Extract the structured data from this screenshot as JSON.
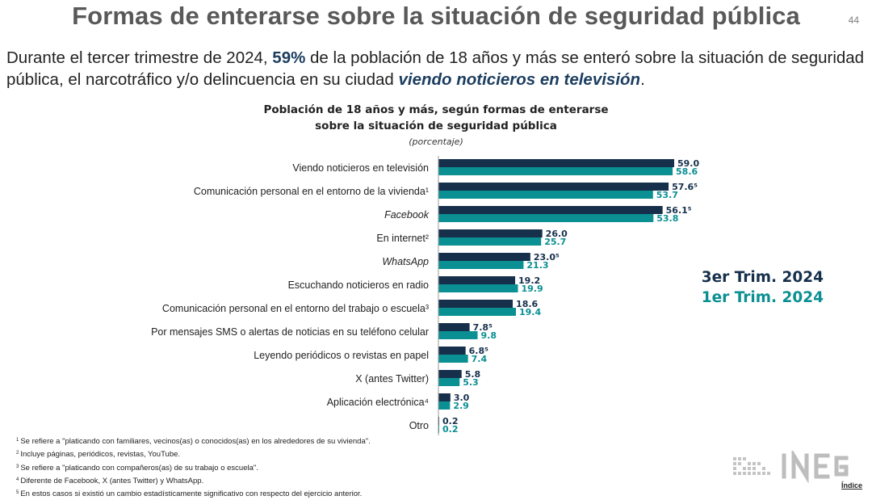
{
  "slide": {
    "title": "Formas de enterarse sobre la situación de seguridad pública",
    "page_number": "44",
    "headline_pre": "Durante el tercer trimestre de 2024, ",
    "headline_pct": "59%",
    "headline_mid": " de la población de 18 años y más se enteró sobre la situación de seguridad pública, el narcotráfico y/o delincuencia en su ciudad ",
    "headline_em": "viendo noticieros en televisión",
    "headline_end": "."
  },
  "chart_data": {
    "type": "bar",
    "orientation": "horizontal",
    "title_line1": "Población de 18 años y más, según formas de enterarse",
    "title_line2": "sobre la situación de seguridad pública",
    "subtitle": "(porcentaje)",
    "categories": [
      "Viendo noticieros en televisión",
      "Comunicación personal en el entorno de la vivienda¹",
      "Facebook",
      "En internet²",
      "WhatsApp",
      "Escuchando noticieros en radio",
      "Comunicación personal en el entorno del trabajo o escuela³",
      "Por mensajes SMS o alertas de noticias en su teléfono celular",
      "Leyendo periódicos o revistas en papel",
      "X (antes Twitter)",
      "Aplicación electrónica⁴",
      "Otro"
    ],
    "italic_categories": [
      2,
      4
    ],
    "series": [
      {
        "name": "3er Trim. 2024",
        "color": "#16304c",
        "values": [
          59.0,
          57.6,
          56.1,
          26.0,
          23.0,
          19.2,
          18.6,
          7.8,
          6.8,
          5.8,
          3.0,
          0.2
        ],
        "labels": [
          "59.0",
          "57.6⁵",
          "56.1⁵",
          "26.0",
          "23.0⁵",
          "19.2",
          "18.6",
          "7.8⁵",
          "6.8⁵",
          "5.8",
          "3.0",
          "0.2"
        ]
      },
      {
        "name": "1er Trim. 2024",
        "color": "#0a8f92",
        "values": [
          58.6,
          53.7,
          53.8,
          25.7,
          21.3,
          19.9,
          19.4,
          9.8,
          7.4,
          5.3,
          2.9,
          0.2
        ],
        "labels": [
          "58.6",
          "53.7",
          "53.8",
          "25.7",
          "21.3",
          "19.9",
          "19.4",
          "9.8",
          "7.4",
          "5.3",
          "2.9",
          "0.2"
        ]
      }
    ],
    "legend_position": "right",
    "grid": false
  },
  "footnotes": [
    {
      "num": "1",
      "text": "Se refiere a \"platicando con familiares, vecinos(as) o conocidos(as) en los alrededores de su vivienda\"."
    },
    {
      "num": "2",
      "text": "Incluye páginas, periódicos, revistas, YouTube."
    },
    {
      "num": "3",
      "text": "Se refiere a \"platicando con compañeros(as) de su trabajo o escuela\"."
    },
    {
      "num": "4",
      "text": "Diferente de Facebook, X (antes Twitter) y WhatsApp."
    },
    {
      "num": "5",
      "text": "En estos casos si existió un cambio estadísticamente significativo con respecto del ejercicio anterior."
    }
  ],
  "logo": {
    "text": "INEGI"
  },
  "nav": {
    "index_label": "Índice"
  }
}
